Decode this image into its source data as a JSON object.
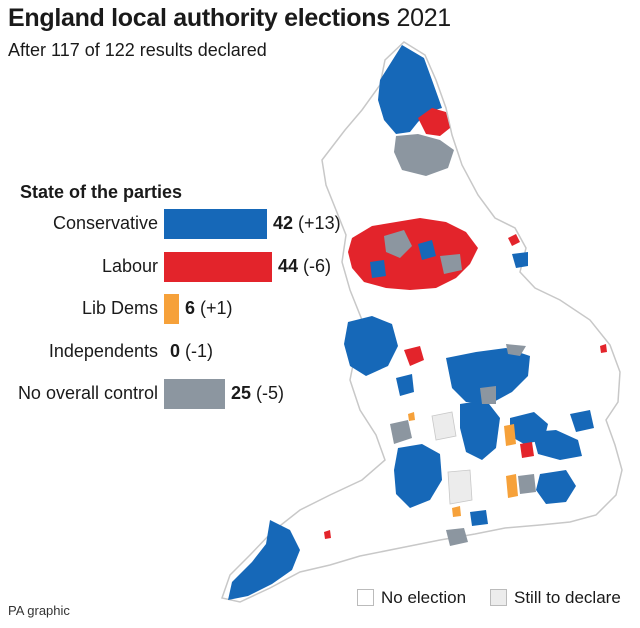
{
  "title": {
    "bold": "England local authority elections",
    "rest": " 2021"
  },
  "subtitle": "After 117 of 122 results declared",
  "legend_title": "State of the parties",
  "parties": [
    {
      "name": "Conservative",
      "seats": "42",
      "change": "(+13)",
      "color": "#1668b8"
    },
    {
      "name": "Labour",
      "seats": "44",
      "change": "(-6)",
      "color": "#e3242b"
    },
    {
      "name": "Lib Dems",
      "seats": "6",
      "change": "(+1)",
      "color": "#f6a13a"
    },
    {
      "name": "Independents",
      "seats": "0",
      "change": "(-1)",
      "color": "#9a9a9a"
    },
    {
      "name": "No overall control",
      "seats": "25",
      "change": "(-5)",
      "color": "#8c96a0"
    }
  ],
  "map_key": [
    {
      "label": "No election",
      "color": "#ffffff"
    },
    {
      "label": "Still to declare",
      "color": "#ececec"
    }
  ],
  "credit": "PA graphic",
  "colors": {
    "outline": "#c8c8c8",
    "land": "#ffffff",
    "undeclared": "#ececec"
  }
}
